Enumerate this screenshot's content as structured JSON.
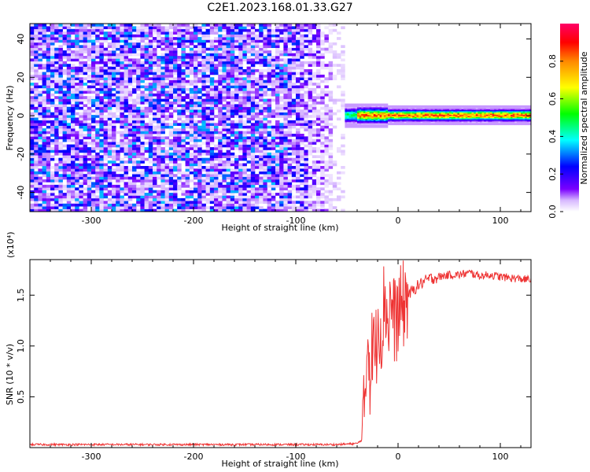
{
  "title": "C2E1.2023.168.01.33.G27",
  "chart_data": [
    {
      "type": "heatmap",
      "xlabel": "Height of straight line (km)",
      "ylabel": "Frequency (Hz)",
      "xlim": [
        -360,
        130
      ],
      "ylim": [
        -50,
        48
      ],
      "xticks": [
        -300,
        -200,
        -100,
        0,
        100
      ],
      "xtick_labels": [
        "-300",
        "-200",
        "-100",
        "0",
        "100"
      ],
      "yticks": [
        -40,
        -20,
        0,
        20,
        40
      ],
      "ytick_labels": [
        "-40",
        "-20",
        "0",
        "20",
        "40"
      ],
      "colorbar": {
        "label": "Normalized spectral amplitude",
        "range": [
          0,
          1
        ],
        "ticks": [
          0.0,
          0.2,
          0.4,
          0.6,
          0.8
        ],
        "tick_labels": [
          "0.0",
          "0.2",
          "0.4",
          "0.6",
          "0.8"
        ],
        "colors": [
          "#ffffff",
          "#7a00ff",
          "#0000ff",
          "#00ffff",
          "#00ff00",
          "#ffff00",
          "#ff0000",
          "#ff0066"
        ]
      },
      "noise_region": {
        "x_range": [
          -360,
          -52
        ],
        "freq_range": [
          -50,
          48
        ],
        "typical_amplitude": [
          0.0,
          0.35
        ]
      },
      "signal_band": {
        "x_range": [
          -52,
          130
        ],
        "center_hz": 0,
        "halfwidth_hz": 3,
        "peak_amplitude": 0.9
      }
    },
    {
      "type": "line",
      "xlabel": "Height of straight line (km)",
      "ylabel": "SNR (10 * v/v)",
      "y_multiplier": "(x10⁴)",
      "xlim": [
        -360,
        130
      ],
      "ylim": [
        0,
        1.85
      ],
      "xticks": [
        -300,
        -200,
        -100,
        0,
        100
      ],
      "xtick_labels": [
        "-300",
        "-200",
        "-100",
        "0",
        "100"
      ],
      "yticks": [
        0.5,
        1.0,
        1.5
      ],
      "ytick_labels": [
        "0.5",
        "1.0",
        "1.5"
      ],
      "series": [
        {
          "color": "#ee3333",
          "x": [
            -360,
            -300,
            -250,
            -200,
            -150,
            -100,
            -60,
            -40,
            -35,
            -33,
            -31,
            -29,
            -27,
            -25,
            -22,
            -19,
            -16,
            -13,
            -10,
            -7,
            -4,
            0,
            5,
            10,
            15,
            20,
            25,
            30,
            40,
            50,
            60,
            70,
            80,
            90,
            100,
            110,
            120,
            130
          ],
          "values": [
            0.03,
            0.03,
            0.03,
            0.03,
            0.03,
            0.03,
            0.03,
            0.04,
            0.08,
            0.35,
            0.85,
            1.2,
            0.6,
            1.05,
            0.9,
            1.35,
            1.1,
            1.55,
            1.2,
            1.45,
            1.25,
            1.3,
            1.4,
            1.5,
            1.55,
            1.6,
            1.63,
            1.66,
            1.68,
            1.7,
            1.7,
            1.72,
            1.69,
            1.7,
            1.68,
            1.67,
            1.66,
            1.65
          ]
        }
      ]
    }
  ]
}
